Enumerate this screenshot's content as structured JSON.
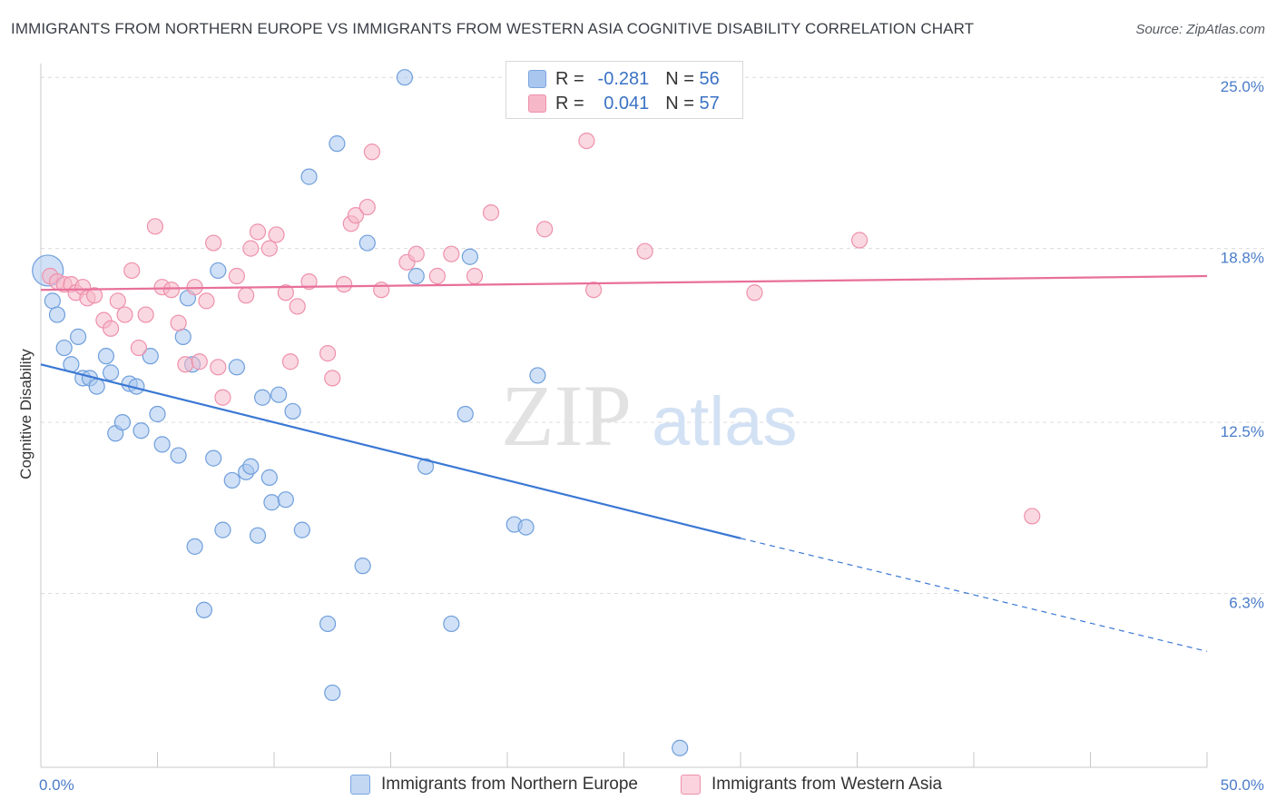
{
  "title": "IMMIGRANTS FROM NORTHERN EUROPE VS IMMIGRANTS FROM WESTERN ASIA COGNITIVE DISABILITY CORRELATION CHART",
  "source": "Source: ZipAtlas.com",
  "watermark": {
    "zip": "ZIP",
    "atlas": "atlas"
  },
  "legend": {
    "r_label": "R =",
    "n_label": "N =",
    "rows": [
      {
        "r": "-0.281",
        "n": "56",
        "color": "#a9c6ee"
      },
      {
        "r": "0.041",
        "n": "57",
        "color": "#f6b8c9"
      }
    ]
  },
  "chart_data": {
    "type": "scatter",
    "title": "IMMIGRANTS FROM NORTHERN EUROPE VS IMMIGRANTS FROM WESTERN ASIA COGNITIVE DISABILITY CORRELATION CHART",
    "xlabel": "",
    "ylabel": "Cognitive Disability",
    "xlim": [
      0,
      50
    ],
    "ylim": [
      0,
      25.5
    ],
    "x_tick_labels": [
      "0.0%",
      "50.0%"
    ],
    "y_ticks": [
      6.3,
      12.5,
      18.8,
      25.0
    ],
    "y_tick_labels": [
      "6.3%",
      "12.5%",
      "18.8%",
      "25.0%"
    ],
    "grid": true,
    "legend_position": "top-center",
    "series": [
      {
        "name": "Immigrants from Northern Europe",
        "color": "#a9c6ee",
        "stroke": "#6f9fdc",
        "trend_color": "#3a78d4",
        "trend": {
          "x0": 0,
          "y0": 14.6,
          "x1": 30,
          "y1": 8.3,
          "dash_to_x": 50,
          "dash_to_y": 4.2
        },
        "points": [
          [
            0.3,
            18.0
          ],
          [
            0.5,
            16.9
          ],
          [
            0.7,
            16.4
          ],
          [
            1.0,
            15.2
          ],
          [
            1.3,
            14.6
          ],
          [
            1.6,
            15.6
          ],
          [
            1.8,
            14.1
          ],
          [
            2.1,
            14.1
          ],
          [
            2.4,
            13.8
          ],
          [
            2.8,
            14.9
          ],
          [
            3.0,
            14.3
          ],
          [
            3.2,
            12.1
          ],
          [
            3.5,
            12.5
          ],
          [
            3.8,
            13.9
          ],
          [
            4.1,
            13.8
          ],
          [
            4.3,
            12.2
          ],
          [
            4.7,
            14.9
          ],
          [
            5.0,
            12.8
          ],
          [
            5.2,
            11.7
          ],
          [
            5.9,
            11.3
          ],
          [
            6.1,
            15.6
          ],
          [
            6.3,
            17.0
          ],
          [
            6.5,
            14.6
          ],
          [
            6.6,
            8.0
          ],
          [
            7.0,
            5.7
          ],
          [
            7.4,
            11.2
          ],
          [
            7.6,
            18.0
          ],
          [
            7.8,
            8.6
          ],
          [
            8.2,
            10.4
          ],
          [
            8.4,
            14.5
          ],
          [
            8.8,
            10.7
          ],
          [
            9.0,
            10.9
          ],
          [
            9.3,
            8.4
          ],
          [
            9.5,
            13.4
          ],
          [
            9.8,
            10.5
          ],
          [
            9.9,
            9.6
          ],
          [
            10.2,
            13.5
          ],
          [
            10.5,
            9.7
          ],
          [
            10.8,
            12.9
          ],
          [
            11.2,
            8.6
          ],
          [
            11.5,
            21.4
          ],
          [
            12.3,
            5.2
          ],
          [
            12.5,
            2.7
          ],
          [
            12.7,
            22.6
          ],
          [
            13.8,
            7.3
          ],
          [
            14.0,
            19.0
          ],
          [
            15.6,
            25.0
          ],
          [
            16.1,
            17.8
          ],
          [
            16.5,
            10.9
          ],
          [
            17.6,
            5.2
          ],
          [
            18.2,
            12.8
          ],
          [
            18.4,
            18.5
          ],
          [
            20.3,
            8.8
          ],
          [
            20.8,
            8.7
          ],
          [
            21.3,
            14.2
          ],
          [
            27.4,
            0.7
          ]
        ]
      },
      {
        "name": "Immigrants from Western Asia",
        "color": "#f6b8c9",
        "stroke": "#ee91ab",
        "trend_color": "#e8709a",
        "trend": {
          "x0": 0,
          "y0": 17.3,
          "x1": 50,
          "y1": 17.8
        },
        "points": [
          [
            0.4,
            17.8
          ],
          [
            0.7,
            17.6
          ],
          [
            1.0,
            17.5
          ],
          [
            1.3,
            17.5
          ],
          [
            1.5,
            17.2
          ],
          [
            1.8,
            17.4
          ],
          [
            2.0,
            17.0
          ],
          [
            2.3,
            17.1
          ],
          [
            2.7,
            16.2
          ],
          [
            3.0,
            15.9
          ],
          [
            3.3,
            16.9
          ],
          [
            3.6,
            16.4
          ],
          [
            3.9,
            18.0
          ],
          [
            4.2,
            15.2
          ],
          [
            4.5,
            16.4
          ],
          [
            4.9,
            19.6
          ],
          [
            5.2,
            17.4
          ],
          [
            5.6,
            17.3
          ],
          [
            5.9,
            16.1
          ],
          [
            6.2,
            14.6
          ],
          [
            6.6,
            17.4
          ],
          [
            6.8,
            14.7
          ],
          [
            7.1,
            16.9
          ],
          [
            7.4,
            19.0
          ],
          [
            7.6,
            14.5
          ],
          [
            7.8,
            13.4
          ],
          [
            8.4,
            17.8
          ],
          [
            8.8,
            17.1
          ],
          [
            9.0,
            18.8
          ],
          [
            9.3,
            19.4
          ],
          [
            9.8,
            18.8
          ],
          [
            10.1,
            19.3
          ],
          [
            10.5,
            17.2
          ],
          [
            10.7,
            14.7
          ],
          [
            11.0,
            16.7
          ],
          [
            11.5,
            17.6
          ],
          [
            12.3,
            15.0
          ],
          [
            12.5,
            14.1
          ],
          [
            13.0,
            17.5
          ],
          [
            13.3,
            19.7
          ],
          [
            13.5,
            20.0
          ],
          [
            14.0,
            20.3
          ],
          [
            14.2,
            22.3
          ],
          [
            14.6,
            17.3
          ],
          [
            15.7,
            18.3
          ],
          [
            16.1,
            18.6
          ],
          [
            17.0,
            17.8
          ],
          [
            17.6,
            18.6
          ],
          [
            18.6,
            17.8
          ],
          [
            19.3,
            20.1
          ],
          [
            21.6,
            19.5
          ],
          [
            23.4,
            22.7
          ],
          [
            23.7,
            17.3
          ],
          [
            25.9,
            18.7
          ],
          [
            30.6,
            17.2
          ],
          [
            35.1,
            19.1
          ],
          [
            42.5,
            9.1
          ]
        ]
      }
    ]
  }
}
